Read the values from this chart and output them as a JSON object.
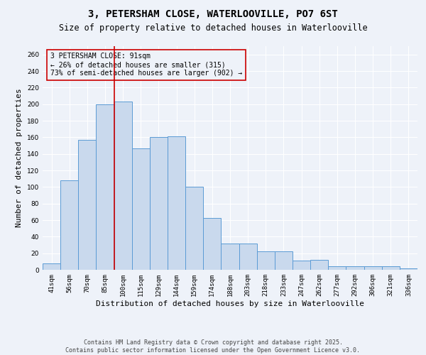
{
  "title": "3, PETERSHAM CLOSE, WATERLOOVILLE, PO7 6ST",
  "subtitle": "Size of property relative to detached houses in Waterlooville",
  "xlabel": "Distribution of detached houses by size in Waterlooville",
  "ylabel": "Number of detached properties",
  "bar_labels": [
    "41sqm",
    "56sqm",
    "70sqm",
    "85sqm",
    "100sqm",
    "115sqm",
    "129sqm",
    "144sqm",
    "159sqm",
    "174sqm",
    "188sqm",
    "203sqm",
    "218sqm",
    "233sqm",
    "247sqm",
    "262sqm",
    "277sqm",
    "292sqm",
    "306sqm",
    "321sqm",
    "336sqm"
  ],
  "bar_values": [
    8,
    108,
    157,
    200,
    203,
    147,
    160,
    161,
    100,
    63,
    32,
    32,
    22,
    22,
    11,
    12,
    4,
    4,
    4,
    4,
    2
  ],
  "bar_color": "#c9d9ed",
  "bar_edgecolor": "#5b9bd5",
  "ylim": [
    0,
    270
  ],
  "yticks": [
    0,
    20,
    40,
    60,
    80,
    100,
    120,
    140,
    160,
    180,
    200,
    220,
    240,
    260
  ],
  "vline_x": 3.5,
  "vline_color": "#cc0000",
  "annotation_title": "3 PETERSHAM CLOSE: 91sqm",
  "annotation_line1": "← 26% of detached houses are smaller (315)",
  "annotation_line2": "73% of semi-detached houses are larger (902) →",
  "footer1": "Contains HM Land Registry data © Crown copyright and database right 2025.",
  "footer2": "Contains public sector information licensed under the Open Government Licence v3.0.",
  "bg_color": "#eef2f9",
  "grid_color": "#ffffff",
  "title_fontsize": 10,
  "subtitle_fontsize": 8.5,
  "axis_label_fontsize": 8,
  "tick_fontsize": 6.5,
  "annotation_fontsize": 7,
  "footer_fontsize": 6
}
